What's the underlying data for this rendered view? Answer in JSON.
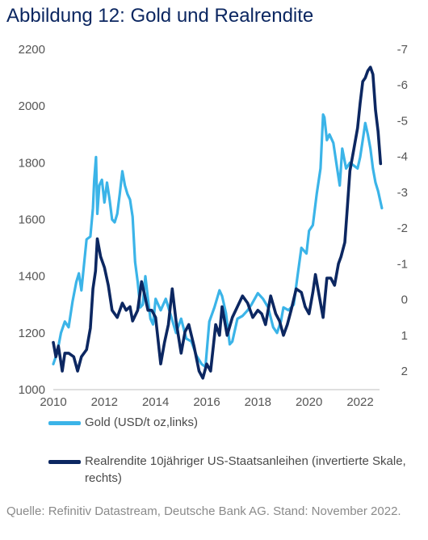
{
  "title": "Abbildung 12: Gold und Realrendite",
  "source": "Quelle: Refinitiv Datastream, Deutsche Bank AG. Stand: November 2022.",
  "colors": {
    "gold": "#3bb4e8",
    "real_yield": "#0c2761",
    "title": "#0c2761"
  },
  "chart_data": {
    "type": "line",
    "x_ticks": [
      "2010",
      "2012",
      "2014",
      "2016",
      "2018",
      "2020",
      "2022"
    ],
    "y_left_ticks": [
      "1000",
      "1200",
      "1400",
      "1600",
      "1800",
      "2000",
      "2200"
    ],
    "y_right_ticks": [
      "2",
      "1",
      "0",
      "-1",
      "-2",
      "-3",
      "-4",
      "-5",
      "-6",
      "-7"
    ],
    "y_left_range": [
      1000,
      2200
    ],
    "y_right_range": [
      2.5,
      -7
    ],
    "x_range": [
      2010,
      2023
    ],
    "grid": false,
    "legend_position": "bottom",
    "series": [
      {
        "name": "Gold (USD/t oz,links)",
        "axis": "left",
        "color": "#3bb4e8",
        "x": [
          2010.0,
          2010.15,
          2010.3,
          2010.45,
          2010.6,
          2010.75,
          2010.9,
          2011.0,
          2011.1,
          2011.2,
          2011.3,
          2011.45,
          2011.55,
          2011.6,
          2011.67,
          2011.72,
          2011.8,
          2011.9,
          2012.0,
          2012.1,
          2012.2,
          2012.3,
          2012.4,
          2012.5,
          2012.6,
          2012.7,
          2012.8,
          2012.9,
          2013.0,
          2013.1,
          2013.2,
          2013.3,
          2013.4,
          2013.5,
          2013.6,
          2013.7,
          2013.8,
          2013.9,
          2014.0,
          2014.2,
          2014.4,
          2014.6,
          2014.8,
          2015.0,
          2015.2,
          2015.4,
          2015.6,
          2015.8,
          2015.95,
          2016.1,
          2016.3,
          2016.5,
          2016.6,
          2016.75,
          2016.9,
          2017.0,
          2017.2,
          2017.4,
          2017.6,
          2017.75,
          2018.0,
          2018.2,
          2018.4,
          2018.6,
          2018.75,
          2018.9,
          2019.0,
          2019.2,
          2019.4,
          2019.55,
          2019.7,
          2019.9,
          2020.0,
          2020.15,
          2020.3,
          2020.45,
          2020.55,
          2020.6,
          2020.7,
          2020.8,
          2020.95,
          2021.1,
          2021.2,
          2021.3,
          2021.45,
          2021.6,
          2021.75,
          2021.9,
          2022.0,
          2022.1,
          2022.2,
          2022.3,
          2022.4,
          2022.5,
          2022.6,
          2022.7,
          2022.85
        ],
        "values": [
          1090,
          1130,
          1200,
          1240,
          1220,
          1310,
          1380,
          1410,
          1350,
          1440,
          1530,
          1540,
          1640,
          1740,
          1820,
          1620,
          1720,
          1740,
          1660,
          1730,
          1670,
          1600,
          1590,
          1620,
          1690,
          1770,
          1720,
          1690,
          1670,
          1610,
          1450,
          1380,
          1290,
          1300,
          1400,
          1320,
          1250,
          1230,
          1320,
          1280,
          1320,
          1260,
          1200,
          1250,
          1180,
          1170,
          1120,
          1090,
          1080,
          1240,
          1290,
          1350,
          1330,
          1270,
          1160,
          1170,
          1250,
          1260,
          1280,
          1300,
          1340,
          1320,
          1290,
          1220,
          1200,
          1240,
          1290,
          1280,
          1300,
          1400,
          1500,
          1480,
          1560,
          1580,
          1690,
          1780,
          1970,
          1960,
          1880,
          1900,
          1870,
          1780,
          1720,
          1850,
          1780,
          1800,
          1790,
          1780,
          1820,
          1880,
          1940,
          1900,
          1850,
          1780,
          1730,
          1700,
          1640
        ]
      },
      {
        "name": "Realrendite 10jähriger US-Staatsanleihen (invertierte Skale, rechts)",
        "axis": "right",
        "color": "#0c2761",
        "x": [
          2010.0,
          2010.1,
          2010.2,
          2010.35,
          2010.45,
          2010.6,
          2010.8,
          2010.95,
          2011.1,
          2011.3,
          2011.45,
          2011.55,
          2011.65,
          2011.72,
          2011.85,
          2012.0,
          2012.15,
          2012.3,
          2012.5,
          2012.7,
          2012.85,
          2013.0,
          2013.1,
          2013.3,
          2013.45,
          2013.55,
          2013.7,
          2013.85,
          2014.0,
          2014.2,
          2014.35,
          2014.5,
          2014.65,
          2014.8,
          2015.0,
          2015.15,
          2015.3,
          2015.5,
          2015.7,
          2015.85,
          2016.0,
          2016.15,
          2016.35,
          2016.5,
          2016.6,
          2016.8,
          2017.0,
          2017.2,
          2017.4,
          2017.6,
          2017.8,
          2018.0,
          2018.15,
          2018.3,
          2018.5,
          2018.7,
          2018.85,
          2019.0,
          2019.15,
          2019.3,
          2019.5,
          2019.7,
          2019.85,
          2020.0,
          2020.15,
          2020.25,
          2020.4,
          2020.55,
          2020.7,
          2020.85,
          2021.0,
          2021.15,
          2021.25,
          2021.4,
          2021.5,
          2021.6,
          2021.75,
          2021.9,
          2022.0,
          2022.1,
          2022.2,
          2022.3,
          2022.4,
          2022.5,
          2022.6,
          2022.7,
          2022.8
        ],
        "values": [
          1.2,
          1.6,
          1.3,
          2.0,
          1.5,
          1.5,
          1.6,
          2.0,
          1.6,
          1.4,
          0.8,
          -0.3,
          -0.8,
          -1.7,
          -1.2,
          -0.9,
          -0.4,
          0.3,
          0.5,
          0.1,
          0.3,
          0.2,
          0.6,
          0.3,
          -0.5,
          -0.2,
          0.3,
          0.3,
          0.5,
          1.8,
          1.2,
          0.7,
          -0.3,
          0.6,
          1.5,
          0.9,
          0.7,
          1.3,
          2.0,
          2.2,
          1.8,
          2.0,
          0.7,
          1.0,
          0.2,
          1.0,
          0.5,
          0.2,
          -0.1,
          0.1,
          0.5,
          0.3,
          0.4,
          0.7,
          -0.1,
          0.4,
          0.6,
          1.0,
          0.7,
          0.3,
          -0.3,
          -0.2,
          0.2,
          0.4,
          -0.2,
          -0.7,
          -0.1,
          0.5,
          -0.6,
          -0.6,
          -0.4,
          -1.0,
          -1.2,
          -1.6,
          -2.6,
          -3.6,
          -4.2,
          -4.8,
          -5.5,
          -6.1,
          -6.2,
          -6.4,
          -6.5,
          -6.3,
          -5.3,
          -4.7,
          -3.8
        ]
      }
    ]
  },
  "legend": [
    {
      "label": "Gold (USD/t oz,links)",
      "color": "#3bb4e8"
    },
    {
      "label": "Realrendite 10jähriger US-Staatsanleihen (invertierte Skale, rechts)",
      "color": "#0c2761"
    }
  ]
}
